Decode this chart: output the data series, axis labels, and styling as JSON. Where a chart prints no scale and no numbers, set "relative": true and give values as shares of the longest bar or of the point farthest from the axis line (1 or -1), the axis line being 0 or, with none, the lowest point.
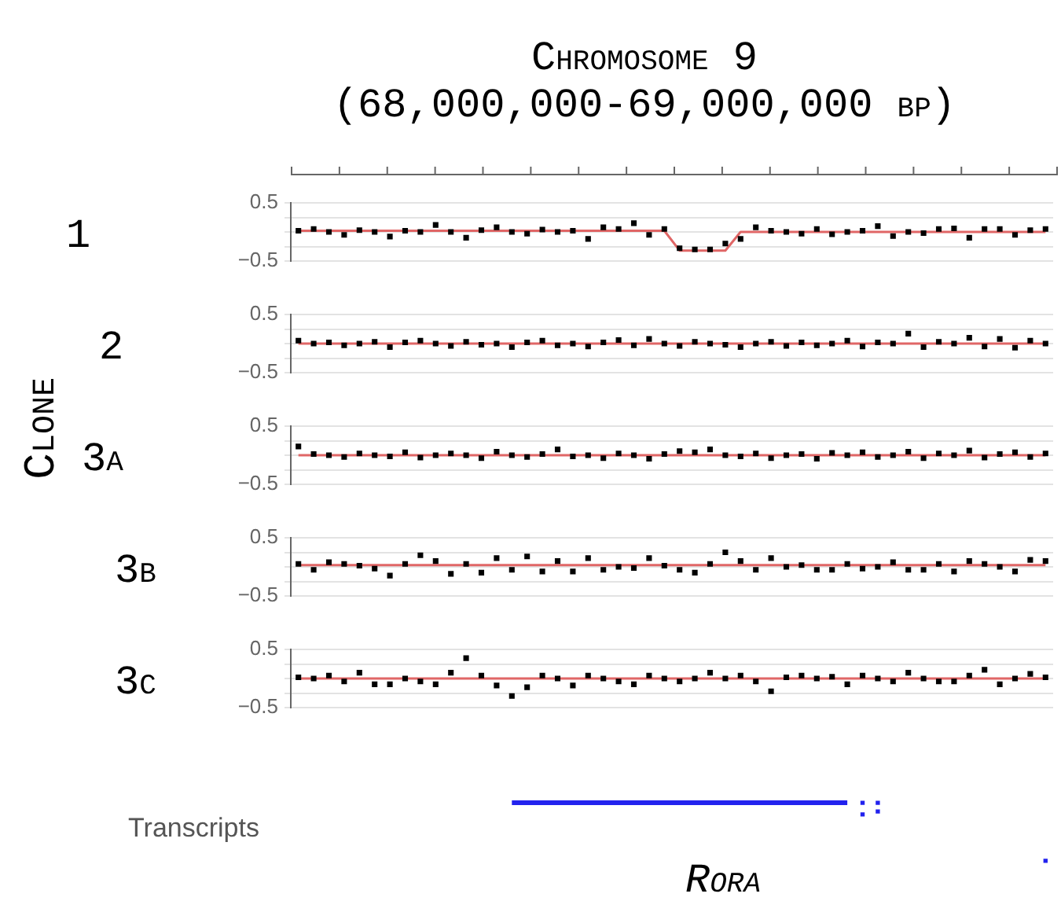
{
  "chart_data": [
    {
      "type": "scatter",
      "title": "Chromosome 9",
      "subtitle": "(68,000,000-69,000,000 bp)",
      "ylabel": "1",
      "annotations": [
        "Clone"
      ],
      "grid": "y",
      "tick_labels": "y",
      "categories": [
        null,
        null,
        null,
        null,
        null,
        null,
        null,
        null,
        null,
        null,
        null,
        null,
        null,
        null,
        null,
        null,
        null,
        null,
        null,
        null,
        null,
        null,
        null,
        null,
        null,
        null,
        null,
        null,
        null,
        null,
        null,
        null,
        null,
        null,
        null,
        null,
        null,
        null,
        null,
        null,
        null,
        null,
        null,
        null,
        null,
        null,
        null,
        null,
        null,
        null
      ],
      "ylim": [
        -0.5,
        0.5
      ],
      "yticks": [
        {
          "value": -0.5,
          "label": "−0.5"
        },
        {
          "value": -0.25,
          "label": null
        },
        {
          "value": 0,
          "label": null
        },
        {
          "value": 0.25,
          "label": null
        },
        {
          "value": 0.5,
          "label": "0.5"
        }
      ],
      "series": [
        {
          "marker": "square",
          "color": "#000000",
          "values": [
            0.02,
            0.05,
            0.0,
            -0.05,
            0.03,
            0.0,
            -0.08,
            0.02,
            0.0,
            0.12,
            0.0,
            -0.1,
            0.03,
            0.08,
            0.0,
            -0.03,
            0.04,
            0.0,
            0.02,
            -0.12,
            0.08,
            0.05,
            0.15,
            -0.05,
            0.05,
            -0.28,
            -0.3,
            -0.3,
            -0.2,
            -0.12,
            0.08,
            0.02,
            0.0,
            -0.03,
            0.05,
            -0.04,
            0.0,
            0.02,
            0.1,
            -0.07,
            0.0,
            -0.02,
            0.05,
            0.06,
            -0.1,
            0.05,
            0.05,
            -0.05,
            0.03,
            0.05
          ]
        },
        {
          "type": "line",
          "color": "#e06666",
          "values": [
            0.02,
            0.02,
            0.02,
            0.02,
            0.02,
            0.02,
            0.02,
            0.02,
            0.02,
            0.02,
            0.02,
            0.02,
            0.02,
            0.02,
            0.02,
            0.02,
            0.02,
            0.02,
            0.02,
            0.02,
            0.02,
            0.02,
            0.02,
            0.02,
            0.02,
            -0.32,
            -0.32,
            -0.32,
            -0.32,
            0.0,
            0.0,
            0.0,
            0.0,
            0.0,
            0.0,
            0.0,
            0.0,
            0.0,
            0.0,
            0.0,
            0.0,
            0.0,
            0.0,
            0.0,
            0.0,
            0.0,
            0.0,
            0.0,
            0.0,
            0.0
          ]
        }
      ]
    },
    {
      "type": "scatter",
      "ylabel": "2",
      "grid": "y",
      "tick_labels": "y",
      "categories": [
        null,
        null,
        null,
        null,
        null,
        null,
        null,
        null,
        null,
        null,
        null,
        null,
        null,
        null,
        null,
        null,
        null,
        null,
        null,
        null,
        null,
        null,
        null,
        null,
        null,
        null,
        null,
        null,
        null,
        null,
        null,
        null,
        null,
        null,
        null,
        null,
        null,
        null,
        null,
        null,
        null,
        null,
        null,
        null,
        null,
        null,
        null,
        null,
        null,
        null
      ],
      "ylim": [
        -0.5,
        0.5
      ],
      "yticks": [
        {
          "value": -0.5,
          "label": "−0.5"
        },
        {
          "value": -0.25,
          "label": null
        },
        {
          "value": 0,
          "label": null
        },
        {
          "value": 0.25,
          "label": null
        },
        {
          "value": 0.5,
          "label": "0.5"
        }
      ],
      "series": [
        {
          "marker": "square",
          "color": "#000000",
          "values": [
            0.05,
            0.0,
            0.02,
            -0.03,
            0.0,
            0.03,
            -0.06,
            0.02,
            0.05,
            0.0,
            -0.04,
            0.03,
            -0.02,
            0.0,
            -0.06,
            0.02,
            0.05,
            -0.03,
            0.0,
            -0.05,
            0.02,
            0.06,
            -0.03,
            0.08,
            0.0,
            -0.04,
            0.03,
            0.0,
            -0.02,
            -0.06,
            0.0,
            0.03,
            -0.04,
            0.02,
            -0.03,
            0.0,
            0.05,
            -0.05,
            0.02,
            0.0,
            0.17,
            -0.06,
            0.03,
            0.0,
            0.1,
            -0.05,
            0.08,
            -0.07,
            0.05,
            0.0
          ]
        },
        {
          "type": "line",
          "color": "#e06666",
          "values": [
            0.0,
            0.0,
            0.0,
            0.0,
            0.0,
            0.0,
            0.0,
            0.0,
            0.0,
            0.0,
            0.0,
            0.0,
            0.0,
            0.0,
            0.0,
            0.0,
            0.0,
            0.0,
            0.0,
            0.0,
            0.0,
            0.0,
            0.0,
            0.0,
            0.0,
            0.0,
            0.0,
            0.0,
            0.0,
            0.0,
            0.0,
            0.0,
            0.0,
            0.0,
            0.0,
            0.0,
            0.0,
            0.0,
            0.0,
            0.0,
            0.0,
            0.0,
            0.0,
            0.0,
            0.0,
            0.0,
            0.0,
            0.0,
            0.0,
            0.0
          ]
        }
      ]
    },
    {
      "type": "scatter",
      "ylabel": "3a",
      "grid": "y",
      "tick_labels": "y",
      "categories": [
        null,
        null,
        null,
        null,
        null,
        null,
        null,
        null,
        null,
        null,
        null,
        null,
        null,
        null,
        null,
        null,
        null,
        null,
        null,
        null,
        null,
        null,
        null,
        null,
        null,
        null,
        null,
        null,
        null,
        null,
        null,
        null,
        null,
        null,
        null,
        null,
        null,
        null,
        null,
        null,
        null,
        null,
        null,
        null,
        null,
        null,
        null,
        null,
        null,
        null
      ],
      "ylim": [
        -0.5,
        0.5
      ],
      "yticks": [
        {
          "value": -0.5,
          "label": "−0.5"
        },
        {
          "value": -0.25,
          "label": null
        },
        {
          "value": 0,
          "label": null
        },
        {
          "value": 0.25,
          "label": null
        },
        {
          "value": 0.5,
          "label": "0.5"
        }
      ],
      "series": [
        {
          "marker": "square",
          "color": "#000000",
          "values": [
            0.15,
            0.02,
            0.0,
            -0.03,
            0.03,
            0.0,
            -0.02,
            0.05,
            -0.04,
            0.0,
            0.03,
            0.0,
            -0.05,
            0.06,
            0.0,
            -0.03,
            0.02,
            0.1,
            -0.02,
            0.0,
            -0.05,
            0.03,
            0.0,
            -0.06,
            0.02,
            0.07,
            0.05,
            0.1,
            0.0,
            -0.02,
            0.03,
            -0.05,
            0.0,
            0.02,
            -0.06,
            0.04,
            0.0,
            0.05,
            -0.03,
            0.0,
            0.06,
            -0.05,
            0.03,
            0.0,
            0.08,
            -0.04,
            0.02,
            0.05,
            -0.03,
            0.03
          ]
        },
        {
          "type": "line",
          "color": "#e06666",
          "values": [
            0.0,
            0.0,
            0.0,
            0.0,
            0.0,
            0.0,
            0.0,
            0.0,
            0.0,
            0.0,
            0.0,
            0.0,
            0.0,
            0.0,
            0.0,
            0.0,
            0.0,
            0.0,
            0.0,
            0.0,
            0.0,
            0.0,
            0.0,
            0.0,
            0.0,
            0.0,
            0.0,
            0.0,
            0.0,
            0.0,
            0.0,
            0.0,
            0.0,
            0.0,
            0.0,
            0.0,
            0.0,
            0.0,
            0.0,
            0.0,
            0.0,
            0.0,
            0.0,
            0.0,
            0.0,
            0.0,
            0.0,
            0.0,
            0.0,
            0.0
          ]
        }
      ]
    },
    {
      "type": "scatter",
      "ylabel": "3b",
      "grid": "y",
      "tick_labels": "y",
      "categories": [
        null,
        null,
        null,
        null,
        null,
        null,
        null,
        null,
        null,
        null,
        null,
        null,
        null,
        null,
        null,
        null,
        null,
        null,
        null,
        null,
        null,
        null,
        null,
        null,
        null,
        null,
        null,
        null,
        null,
        null,
        null,
        null,
        null,
        null,
        null,
        null,
        null,
        null,
        null,
        null,
        null,
        null,
        null,
        null,
        null,
        null,
        null,
        null,
        null,
        null
      ],
      "ylim": [
        -0.5,
        0.5
      ],
      "yticks": [
        {
          "value": -0.5,
          "label": "−0.5"
        },
        {
          "value": -0.25,
          "label": null
        },
        {
          "value": 0,
          "label": null
        },
        {
          "value": 0.25,
          "label": null
        },
        {
          "value": 0.5,
          "label": "0.5"
        }
      ],
      "series": [
        {
          "marker": "square",
          "color": "#000000",
          "values": [
            0.05,
            -0.05,
            0.08,
            0.05,
            0.02,
            -0.03,
            -0.15,
            0.05,
            0.2,
            0.1,
            -0.12,
            0.05,
            -0.1,
            0.15,
            -0.05,
            0.18,
            -0.08,
            0.1,
            -0.08,
            0.15,
            -0.05,
            0.0,
            -0.02,
            0.15,
            0.02,
            -0.05,
            -0.1,
            0.05,
            0.25,
            0.1,
            -0.05,
            0.15,
            0.0,
            0.03,
            -0.05,
            -0.05,
            0.05,
            -0.03,
            0.0,
            0.08,
            -0.05,
            -0.05,
            0.05,
            -0.08,
            0.1,
            0.05,
            0.0,
            -0.08,
            0.12,
            0.1
          ]
        },
        {
          "type": "line",
          "color": "#e06666",
          "values": [
            0.03,
            0.03,
            0.03,
            0.03,
            0.03,
            0.03,
            0.03,
            0.03,
            0.03,
            0.03,
            0.03,
            0.03,
            0.03,
            0.03,
            0.03,
            0.03,
            0.03,
            0.03,
            0.03,
            0.03,
            0.03,
            0.03,
            0.03,
            0.03,
            0.03,
            0.03,
            0.03,
            0.03,
            0.03,
            0.03,
            0.03,
            0.03,
            0.03,
            0.03,
            0.03,
            0.03,
            0.03,
            0.03,
            0.03,
            0.03,
            0.03,
            0.03,
            0.03,
            0.03,
            0.03,
            0.03,
            0.03,
            0.03,
            0.03,
            0.03
          ]
        }
      ]
    },
    {
      "type": "scatter",
      "ylabel": "3c",
      "grid": "y",
      "tick_labels": "y",
      "categories": [
        null,
        null,
        null,
        null,
        null,
        null,
        null,
        null,
        null,
        null,
        null,
        null,
        null,
        null,
        null,
        null,
        null,
        null,
        null,
        null,
        null,
        null,
        null,
        null,
        null,
        null,
        null,
        null,
        null,
        null,
        null,
        null,
        null,
        null,
        null,
        null,
        null,
        null,
        null,
        null,
        null,
        null,
        null,
        null,
        null,
        null,
        null,
        null,
        null,
        null
      ],
      "ylim": [
        -0.5,
        0.5
      ],
      "yticks": [
        {
          "value": -0.5,
          "label": "−0.5"
        },
        {
          "value": -0.25,
          "label": null
        },
        {
          "value": 0,
          "label": null
        },
        {
          "value": 0.25,
          "label": null
        },
        {
          "value": 0.5,
          "label": "0.5"
        }
      ],
      "series": [
        {
          "marker": "square",
          "color": "#000000",
          "values": [
            0.02,
            0.0,
            0.05,
            -0.05,
            0.1,
            -0.1,
            -0.1,
            0.0,
            -0.05,
            -0.1,
            0.1,
            0.35,
            0.05,
            -0.12,
            -0.3,
            -0.15,
            0.05,
            0.0,
            -0.12,
            0.05,
            0.0,
            -0.05,
            -0.1,
            0.05,
            0.0,
            -0.05,
            0.0,
            0.1,
            0.0,
            0.05,
            -0.05,
            -0.22,
            0.02,
            0.05,
            0.0,
            0.03,
            -0.1,
            0.05,
            0.0,
            -0.05,
            0.1,
            0.0,
            -0.05,
            -0.05,
            0.05,
            0.15,
            -0.1,
            0.0,
            0.08,
            0.02
          ]
        },
        {
          "type": "line",
          "color": "#e06666",
          "values": [
            0.0,
            0.0,
            0.0,
            0.0,
            0.0,
            0.0,
            0.0,
            0.0,
            0.0,
            0.0,
            0.0,
            0.0,
            0.0,
            0.0,
            0.0,
            0.0,
            0.0,
            0.0,
            0.0,
            0.0,
            0.0,
            0.0,
            0.0,
            0.0,
            0.0,
            0.0,
            0.0,
            0.0,
            0.0,
            0.0,
            0.0,
            0.0,
            0.0,
            0.0,
            0.0,
            0.0,
            0.0,
            0.0,
            0.0,
            0.0,
            0.0,
            0.0,
            0.0,
            0.0,
            0.0,
            0.0,
            0.0,
            0.0,
            0.0,
            0.0
          ]
        }
      ]
    },
    {
      "type": "line",
      "ylabel": "Transcripts",
      "xlabel": "Rora",
      "relative": true,
      "tick_labels": false,
      "categories": [
        null,
        null,
        null,
        null,
        null,
        null,
        null,
        null,
        null,
        null,
        null,
        null,
        null,
        null,
        null,
        null,
        null,
        null,
        null,
        null,
        null,
        null,
        null,
        null,
        null,
        null,
        null,
        null,
        null,
        null,
        null,
        null,
        null,
        null,
        null,
        null,
        null,
        null,
        null,
        null,
        null,
        null,
        null,
        null,
        null,
        null,
        null,
        null,
        null,
        null
      ],
      "series": [
        {
          "color": "#2222ee",
          "values": [
            null,
            null,
            null,
            null,
            null,
            null,
            null,
            null,
            null,
            null,
            null,
            null,
            null,
            null,
            1,
            1,
            1,
            1,
            1,
            1,
            1,
            1,
            1,
            1,
            1,
            1,
            1,
            1,
            1,
            1,
            1,
            1,
            1,
            1,
            1,
            1,
            1,
            null,
            null,
            null,
            null,
            null,
            null,
            null,
            null,
            null,
            null,
            null,
            null,
            null
          ]
        },
        {
          "type": "scatter",
          "color": "#2222ee",
          "values": [
            null,
            null,
            null,
            null,
            null,
            null,
            null,
            null,
            null,
            null,
            null,
            null,
            null,
            null,
            null,
            null,
            null,
            null,
            null,
            null,
            null,
            null,
            null,
            null,
            null,
            null,
            null,
            null,
            null,
            null,
            null,
            null,
            null,
            null,
            null,
            null,
            null,
            1,
            1,
            null,
            null,
            null,
            null,
            null,
            null,
            null,
            null,
            null,
            null,
            0
          ]
        },
        {
          "type": "scatter",
          "color": "#2222ee",
          "values": [
            null,
            null,
            null,
            null,
            null,
            null,
            null,
            null,
            null,
            null,
            null,
            null,
            null,
            null,
            null,
            null,
            null,
            null,
            null,
            null,
            null,
            null,
            null,
            null,
            null,
            null,
            null,
            null,
            null,
            null,
            null,
            null,
            null,
            null,
            null,
            null,
            null,
            0.8,
            0.85,
            null,
            null,
            null,
            null,
            null,
            null,
            null,
            null,
            null,
            null,
            null
          ]
        }
      ]
    }
  ]
}
